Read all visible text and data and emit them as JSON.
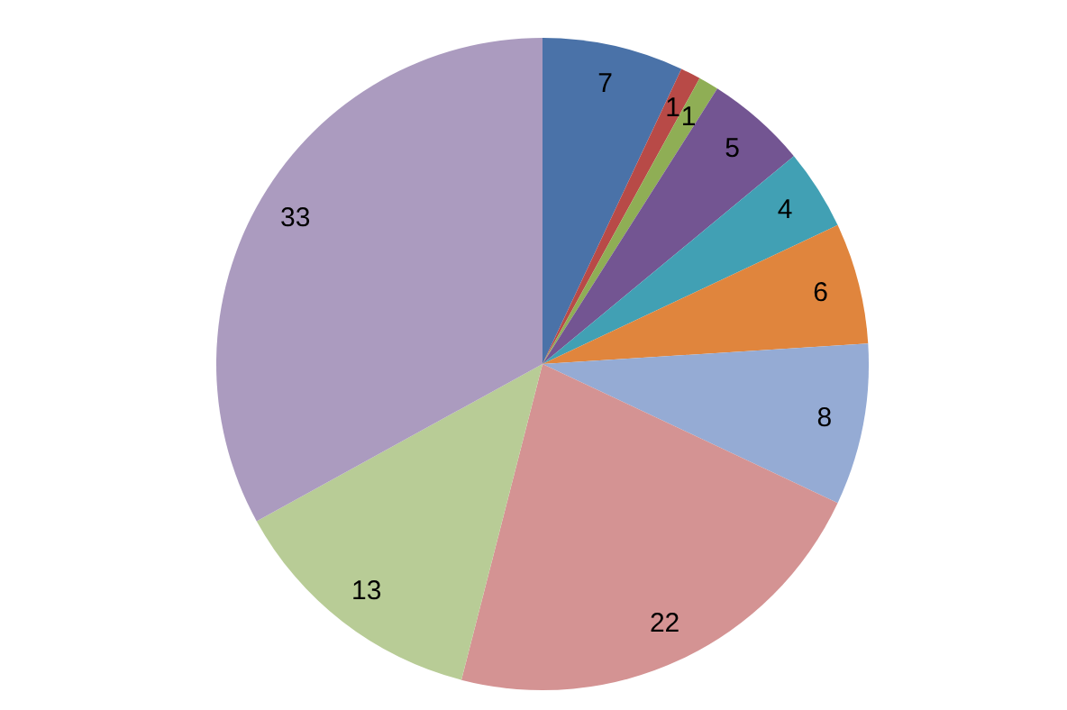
{
  "chart_data": {
    "type": "pie",
    "categories": [
      null,
      null,
      null,
      null,
      null,
      null,
      null,
      null,
      null,
      null
    ],
    "values": [
      7,
      1,
      1,
      5,
      4,
      6,
      8,
      22,
      13,
      33
    ],
    "colors": [
      "#4a72a8",
      "#b84a47",
      "#8fae55",
      "#735592",
      "#41a0b4",
      "#e0853d",
      "#95abd4",
      "#d49393",
      "#b8cc96",
      "#ab9bbf"
    ],
    "data_labels": true,
    "legend": false
  }
}
